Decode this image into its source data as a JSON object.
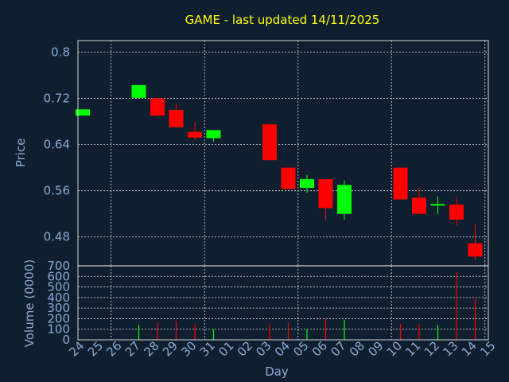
{
  "chart_data": [
    {
      "type": "candlestick",
      "title": "GAME - last updated 14/11/2025",
      "ylabel": "Price",
      "ylim": [
        0.43,
        0.82
      ],
      "yticks": [
        "0.8",
        "0.72",
        "0.64",
        "0.56",
        "0.48"
      ],
      "ytick_values": [
        0.8,
        0.72,
        0.64,
        0.56,
        0.48
      ],
      "categories": [
        "24",
        "25",
        "26",
        "27",
        "28",
        "29",
        "30",
        "31",
        "01",
        "02",
        "03",
        "04",
        "05",
        "06",
        "07",
        "08",
        "09",
        "10",
        "11",
        "12",
        "13",
        "14",
        "15"
      ],
      "candles": [
        {
          "day": "24",
          "open": 0.69,
          "close": 0.701,
          "high": 0.701,
          "low": 0.69,
          "direction": "up"
        },
        {
          "day": "27",
          "open": 0.721,
          "close": 0.743,
          "high": 0.743,
          "low": 0.721,
          "direction": "up"
        },
        {
          "day": "28",
          "open": 0.72,
          "close": 0.69,
          "high": 0.72,
          "low": 0.69,
          "direction": "down"
        },
        {
          "day": "29",
          "open": 0.7,
          "close": 0.67,
          "high": 0.71,
          "low": 0.67,
          "direction": "down"
        },
        {
          "day": "30",
          "open": 0.662,
          "close": 0.652,
          "high": 0.679,
          "low": 0.648,
          "direction": "down"
        },
        {
          "day": "31",
          "open": 0.651,
          "close": 0.665,
          "high": 0.665,
          "low": 0.645,
          "direction": "up"
        },
        {
          "day": "03",
          "open": 0.675,
          "close": 0.613,
          "high": 0.675,
          "low": 0.613,
          "direction": "down"
        },
        {
          "day": "04",
          "open": 0.6,
          "close": 0.563,
          "high": 0.6,
          "low": 0.563,
          "direction": "down"
        },
        {
          "day": "05",
          "open": 0.565,
          "close": 0.58,
          "high": 0.588,
          "low": 0.556,
          "direction": "up"
        },
        {
          "day": "06",
          "open": 0.58,
          "close": 0.53,
          "high": 0.58,
          "low": 0.51,
          "direction": "down"
        },
        {
          "day": "07",
          "open": 0.52,
          "close": 0.57,
          "high": 0.578,
          "low": 0.51,
          "direction": "up"
        },
        {
          "day": "10",
          "open": 0.6,
          "close": 0.545,
          "high": 0.6,
          "low": 0.545,
          "direction": "down"
        },
        {
          "day": "11",
          "open": 0.548,
          "close": 0.52,
          "high": 0.565,
          "low": 0.52,
          "direction": "down"
        },
        {
          "day": "12",
          "open": 0.535,
          "close": 0.537,
          "high": 0.55,
          "low": 0.52,
          "direction": "up"
        },
        {
          "day": "13",
          "open": 0.536,
          "close": 0.51,
          "high": 0.55,
          "low": 0.5,
          "direction": "down"
        },
        {
          "day": "14",
          "open": 0.469,
          "close": 0.446,
          "high": 0.502,
          "low": 0.44,
          "direction": "down"
        }
      ],
      "grid": true,
      "colors": {
        "up": "#00ff00",
        "down": "#ff0000"
      }
    },
    {
      "type": "bar",
      "xlabel": "Day",
      "ylabel": "Volume (0000)",
      "ylim": [
        0,
        700
      ],
      "yticks": [
        "700",
        "600",
        "500",
        "400",
        "300",
        "200",
        "100",
        "0"
      ],
      "ytick_values": [
        700,
        600,
        500,
        400,
        300,
        200,
        100,
        0
      ],
      "categories": [
        "24",
        "25",
        "26",
        "27",
        "28",
        "29",
        "30",
        "31",
        "01",
        "02",
        "03",
        "04",
        "05",
        "06",
        "07",
        "08",
        "09",
        "10",
        "11",
        "12",
        "13",
        "14",
        "15"
      ],
      "values": [
        {
          "day": "24",
          "value": 0,
          "direction": "up"
        },
        {
          "day": "27",
          "value": 140,
          "direction": "up"
        },
        {
          "day": "28",
          "value": 160,
          "direction": "down"
        },
        {
          "day": "29",
          "value": 180,
          "direction": "down"
        },
        {
          "day": "30",
          "value": 150,
          "direction": "down"
        },
        {
          "day": "31",
          "value": 100,
          "direction": "up"
        },
        {
          "day": "03",
          "value": 150,
          "direction": "down"
        },
        {
          "day": "04",
          "value": 160,
          "direction": "down"
        },
        {
          "day": "05",
          "value": 100,
          "direction": "up"
        },
        {
          "day": "06",
          "value": 200,
          "direction": "down"
        },
        {
          "day": "07",
          "value": 190,
          "direction": "up"
        },
        {
          "day": "10",
          "value": 150,
          "direction": "down"
        },
        {
          "day": "11",
          "value": 150,
          "direction": "down"
        },
        {
          "day": "12",
          "value": 140,
          "direction": "up"
        },
        {
          "day": "13",
          "value": 640,
          "direction": "down"
        },
        {
          "day": "14",
          "value": 390,
          "direction": "down"
        }
      ],
      "grid": true,
      "colors": {
        "up": "#00ff00",
        "down": "#ff0000"
      }
    }
  ]
}
